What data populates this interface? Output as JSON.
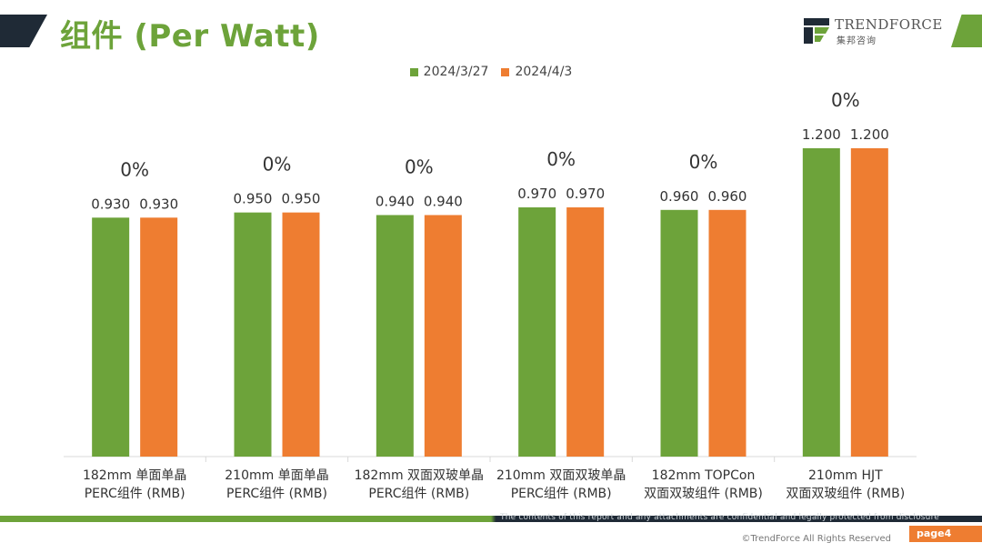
{
  "header": {
    "title": "组件 (Per Watt)",
    "logo_name": "TRENDFORCE",
    "logo_sub": "集邦咨询"
  },
  "colors": {
    "series1": "#6da33a",
    "series2": "#ee7d31",
    "dark": "#1f2a36"
  },
  "chart_data": {
    "type": "bar",
    "categories": [
      [
        "182mm 单面单晶",
        "PERC组件 (RMB)"
      ],
      [
        "210mm 单面单晶",
        "PERC组件 (RMB)"
      ],
      [
        "182mm 双面双玻单晶",
        "PERC组件 (RMB)"
      ],
      [
        "210mm 双面双玻单晶",
        "PERC组件 (RMB)"
      ],
      [
        "182mm TOPCon",
        "双面双玻组件 (RMB)"
      ],
      [
        "210mm HJT",
        "双面双玻组件 (RMB)"
      ]
    ],
    "series": [
      {
        "name": "2024/3/27",
        "values": [
          0.93,
          0.95,
          0.94,
          0.97,
          0.96,
          1.2
        ],
        "labels": [
          "0.930",
          "0.950",
          "0.940",
          "0.970",
          "0.960",
          "1.200"
        ]
      },
      {
        "name": "2024/4/3",
        "values": [
          0.93,
          0.95,
          0.94,
          0.97,
          0.96,
          1.2
        ],
        "labels": [
          "0.930",
          "0.950",
          "0.940",
          "0.970",
          "0.960",
          "1.200"
        ]
      }
    ],
    "changes": [
      "0%",
      "0%",
      "0%",
      "0%",
      "0%",
      "0%"
    ],
    "ylim": [
      0,
      1.2
    ],
    "legend": "top-center",
    "grid": false
  },
  "footer": {
    "note": "The contents of this report and any attachments are confidential and legally protected from disclosure",
    "copyright": "©TrendForce All Rights Reserved",
    "page": "page4"
  }
}
